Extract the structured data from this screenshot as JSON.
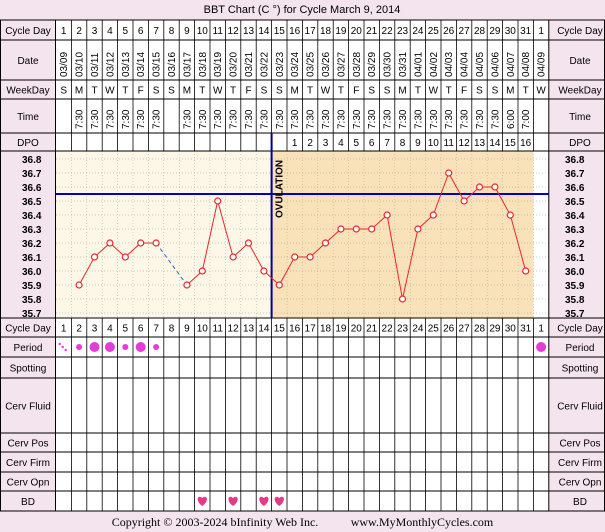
{
  "title": "BBT Chart (C °) for Cycle March 9, 2014",
  "copyright": "Copyright © 2003-2024 bInfinity Web Inc.",
  "website": "www.MyMonthlyCycles.com",
  "labels": {
    "cycle_day": "Cycle Day",
    "date": "Date",
    "weekday": "WeekDay",
    "time": "Time",
    "dpo": "DPO",
    "period": "Period",
    "spotting": "Spotting",
    "cerv_fluid": "Cerv Fluid",
    "cerv_pos": "Cerv Pos",
    "cerv_firm": "Cerv Firm",
    "cerv_opn": "Cerv Opn",
    "bd": "BD",
    "ovulation": "OVULATION"
  },
  "colors": {
    "line": "#e8262a",
    "coverline": "#0000cc",
    "ovulation": "#00008b",
    "pre_bg": "#fdf7e7",
    "post_bg": "#f9e1b9",
    "period": "#e53bd8",
    "heart": "#e23a86",
    "grid_bg": "#ffffff"
  },
  "cycle_days": [
    "1",
    "2",
    "3",
    "4",
    "5",
    "6",
    "7",
    "8",
    "9",
    "10",
    "11",
    "12",
    "13",
    "14",
    "15",
    "16",
    "17",
    "18",
    "19",
    "20",
    "21",
    "22",
    "23",
    "24",
    "25",
    "26",
    "27",
    "28",
    "29",
    "30",
    "31",
    "1"
  ],
  "dates": [
    "03/09",
    "03/10",
    "03/11",
    "03/12",
    "03/13",
    "03/14",
    "03/15",
    "03/16",
    "03/17",
    "03/18",
    "03/19",
    "03/20",
    "03/21",
    "03/22",
    "03/23",
    "03/24",
    "03/25",
    "03/26",
    "03/27",
    "03/28",
    "03/29",
    "03/30",
    "03/31",
    "04/01",
    "04/02",
    "04/03",
    "04/04",
    "04/05",
    "04/06",
    "04/07",
    "04/08",
    "04/09"
  ],
  "weekdays": [
    "S",
    "M",
    "T",
    "W",
    "T",
    "F",
    "S",
    "S",
    "M",
    "T",
    "W",
    "T",
    "F",
    "S",
    "S",
    "M",
    "T",
    "W",
    "T",
    "F",
    "S",
    "S",
    "M",
    "T",
    "W",
    "T",
    "F",
    "S",
    "S",
    "M",
    "T",
    "W"
  ],
  "times": [
    "",
    "7:30",
    "7:30",
    "7:30",
    "7:30",
    "7:30",
    "7:30",
    "",
    "7:30",
    "7:30",
    "7:30",
    "7:30",
    "7:30",
    "7:30",
    "7:30",
    "7:30",
    "7:30",
    "7:30",
    "7:30",
    "7:30",
    "7:30",
    "7:30",
    "7:30",
    "7:30",
    "7:30",
    "7:30",
    "7:30",
    "7:30",
    "7:30",
    "6:00",
    "7:00",
    ""
  ],
  "dpo": [
    "",
    "",
    "",
    "",
    "",
    "",
    "",
    "",
    "",
    "",
    "",
    "",
    "",
    "",
    "",
    "1",
    "2",
    "3",
    "4",
    "5",
    "6",
    "7",
    "8",
    "9",
    "10",
    "11",
    "12",
    "13",
    "14",
    "15",
    "16",
    ""
  ],
  "period": [
    "light",
    "medium",
    "heavy",
    "heavy",
    "medium",
    "heavy",
    "medium",
    "",
    "",
    "",
    "",
    "",
    "",
    "",
    "",
    "",
    "",
    "",
    "",
    "",
    "",
    "",
    "",
    "",
    "",
    "",
    "",
    "",
    "",
    "",
    "",
    "heavy"
  ],
  "bd": [
    "",
    "",
    "",
    "",
    "",
    "",
    "",
    "",
    "",
    "yes",
    "",
    "yes",
    "",
    "yes",
    "yes",
    "",
    "",
    "",
    "",
    "",
    "",
    "",
    "",
    "",
    "",
    "",
    "",
    "",
    "",
    "",
    "",
    ""
  ],
  "chart_data": {
    "type": "line",
    "ylim": [
      35.7,
      36.8
    ],
    "yticks": [
      "36.8",
      "36.7",
      "36.6",
      "36.5",
      "36.4",
      "36.3",
      "36.2",
      "36.1",
      "36.0",
      "35.9",
      "35.8",
      "35.7"
    ],
    "coverline": 36.55,
    "ovulation_day": 15,
    "series": [
      {
        "values": [
          null,
          35.9,
          36.1,
          36.2,
          36.1,
          36.2,
          36.2,
          null,
          35.9,
          36.0,
          36.5,
          36.1,
          36.2,
          36.0,
          35.9,
          36.1,
          36.1,
          36.2,
          36.3,
          36.3,
          36.3,
          36.4,
          35.8,
          36.3,
          36.4,
          36.7,
          36.5,
          36.6,
          36.6,
          36.4,
          36.0,
          null
        ]
      }
    ]
  }
}
